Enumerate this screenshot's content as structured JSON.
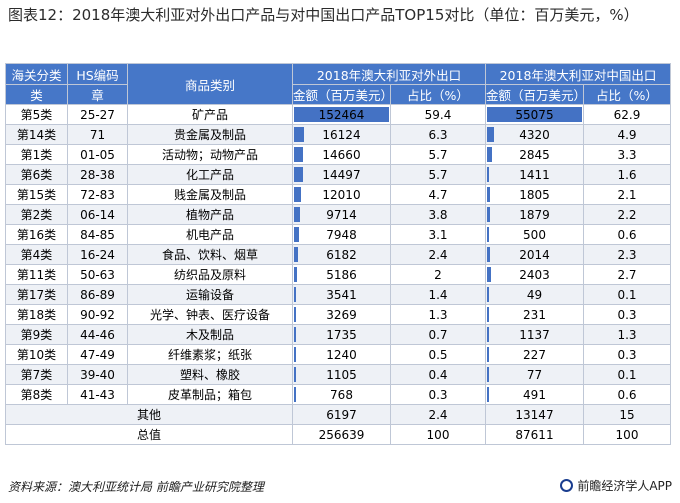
{
  "title": "图表12：2018年澳大利亚对外出口产品与对中国出口产品TOP15对比（单位：百万美元，%）",
  "headers": {
    "category_line1": "海关分类",
    "category_line2": "类",
    "hs_line1": "HS编码",
    "hs_line2": "章",
    "product": "商品类别",
    "world_group": "2018年澳大利亚对外出口",
    "china_group": "2018年澳大利亚对中国出口",
    "world_amount": "金额（百万美元）",
    "world_share": "占比（%）",
    "china_amount": "金额（百万美元）",
    "china_share": "占比（%）"
  },
  "rows": [
    {
      "cat": "第5类",
      "hs": "25-27",
      "name": "矿产品",
      "w_amt": "152464",
      "w_pct": "59.4",
      "c_amt": "55075",
      "c_pct": "62.9",
      "w_val": 152464,
      "c_val": 55075
    },
    {
      "cat": "第14类",
      "hs": "71",
      "name": "贵金属及制品",
      "w_amt": "16124",
      "w_pct": "6.3",
      "c_amt": "4320",
      "c_pct": "4.9",
      "w_val": 16124,
      "c_val": 4320
    },
    {
      "cat": "第1类",
      "hs": "01-05",
      "name": "活动物；动物产品",
      "w_amt": "14660",
      "w_pct": "5.7",
      "c_amt": "2845",
      "c_pct": "3.3",
      "w_val": 14660,
      "c_val": 2845
    },
    {
      "cat": "第6类",
      "hs": "28-38",
      "name": "化工产品",
      "w_amt": "14497",
      "w_pct": "5.7",
      "c_amt": "1411",
      "c_pct": "1.6",
      "w_val": 14497,
      "c_val": 1411
    },
    {
      "cat": "第15类",
      "hs": "72-83",
      "name": "贱金属及制品",
      "w_amt": "12010",
      "w_pct": "4.7",
      "c_amt": "1805",
      "c_pct": "2.1",
      "w_val": 12010,
      "c_val": 1805
    },
    {
      "cat": "第2类",
      "hs": "06-14",
      "name": "植物产品",
      "w_amt": "9714",
      "w_pct": "3.8",
      "c_amt": "1879",
      "c_pct": "2.2",
      "w_val": 9714,
      "c_val": 1879
    },
    {
      "cat": "第16类",
      "hs": "84-85",
      "name": "机电产品",
      "w_amt": "7948",
      "w_pct": "3.1",
      "c_amt": "500",
      "c_pct": "0.6",
      "w_val": 7948,
      "c_val": 500
    },
    {
      "cat": "第4类",
      "hs": "16-24",
      "name": "食品、饮料、烟草",
      "w_amt": "6182",
      "w_pct": "2.4",
      "c_amt": "2014",
      "c_pct": "2.3",
      "w_val": 6182,
      "c_val": 2014
    },
    {
      "cat": "第11类",
      "hs": "50-63",
      "name": "纺织品及原料",
      "w_amt": "5186",
      "w_pct": "2",
      "c_amt": "2403",
      "c_pct": "2.7",
      "w_val": 5186,
      "c_val": 2403
    },
    {
      "cat": "第17类",
      "hs": "86-89",
      "name": "运输设备",
      "w_amt": "3541",
      "w_pct": "1.4",
      "c_amt": "49",
      "c_pct": "0.1",
      "w_val": 3541,
      "c_val": 49
    },
    {
      "cat": "第18类",
      "hs": "90-92",
      "name": "光学、钟表、医疗设备",
      "w_amt": "3269",
      "w_pct": "1.3",
      "c_amt": "231",
      "c_pct": "0.3",
      "w_val": 3269,
      "c_val": 231
    },
    {
      "cat": "第9类",
      "hs": "44-46",
      "name": "木及制品",
      "w_amt": "1735",
      "w_pct": "0.7",
      "c_amt": "1137",
      "c_pct": "1.3",
      "w_val": 1735,
      "c_val": 1137
    },
    {
      "cat": "第10类",
      "hs": "47-49",
      "name": "纤维素浆；纸张",
      "w_amt": "1240",
      "w_pct": "0.5",
      "c_amt": "227",
      "c_pct": "0.3",
      "w_val": 1240,
      "c_val": 227
    },
    {
      "cat": "第7类",
      "hs": "39-40",
      "name": "塑料、橡胶",
      "w_amt": "1105",
      "w_pct": "0.4",
      "c_amt": "77",
      "c_pct": "0.1",
      "w_val": 1105,
      "c_val": 77
    },
    {
      "cat": "第8类",
      "hs": "41-43",
      "name": "皮革制品；箱包",
      "w_amt": "768",
      "w_pct": "0.3",
      "c_amt": "491",
      "c_pct": "0.6",
      "w_val": 768,
      "c_val": 491
    }
  ],
  "other": {
    "label": "其他",
    "w_amt": "6197",
    "w_pct": "2.4",
    "c_amt": "13147",
    "c_pct": "15"
  },
  "total": {
    "label": "总值",
    "w_amt": "256639",
    "w_pct": "100",
    "c_amt": "87611",
    "c_pct": "100"
  },
  "colors": {
    "header": "#4677c8",
    "bar": "#4472c4"
  },
  "source": "资料来源：澳大利亚统计局 前瞻产业研究院整理",
  "brand": "前瞻经济学人APP",
  "brand_icon": "qianzhan-logo-icon"
}
